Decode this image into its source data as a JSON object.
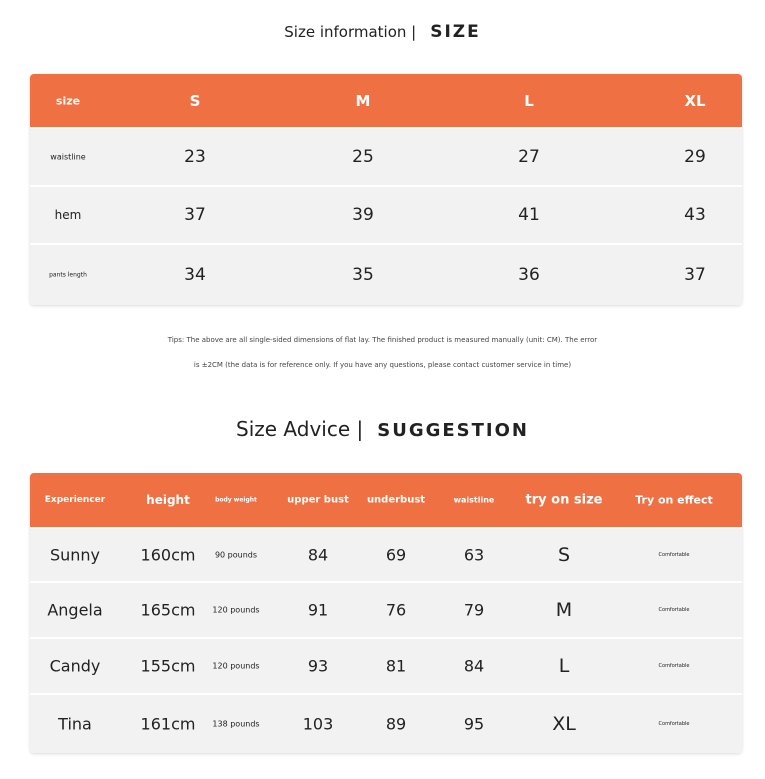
{
  "size_info": {
    "title": "Size information |",
    "title_bold": "SIZE",
    "headers": [
      "size",
      "S",
      "M",
      "L",
      "XL"
    ],
    "rows": [
      [
        "waistline",
        "23",
        "25",
        "27",
        "29"
      ],
      [
        "hem",
        "37",
        "39",
        "41",
        "43"
      ],
      [
        "pants length",
        "34",
        "35",
        "36",
        "37"
      ]
    ]
  },
  "tips": [
    "Tips: The above are all single-sided dimensions of flat lay. The finished product is measured manually (unit: CM). The error",
    "is ±2CM (the data is for reference only. If you have any questions, please contact customer service in time)"
  ],
  "size_advice": {
    "title": "Size Advice |",
    "title_bold": "SUGGESTION",
    "headers": [
      "Experiencer",
      "height",
      "body weight",
      "upper bust",
      "underbust",
      "waistline",
      "try on size",
      "Try on effect"
    ],
    "rows": [
      [
        "Sunny",
        "160cm",
        "90 pounds",
        "84",
        "69",
        "63",
        "S",
        "Comfortable"
      ],
      [
        "Angela",
        "165cm",
        "120 pounds",
        "91",
        "76",
        "79",
        "M",
        "Comfortable"
      ],
      [
        "Candy",
        "155cm",
        "120 pounds",
        "93",
        "81",
        "84",
        "L",
        "Comfortable"
      ],
      [
        "Tina",
        "161cm",
        "138 pounds",
        "103",
        "89",
        "95",
        "XL",
        "Comfortable"
      ]
    ]
  },
  "colors": {
    "accent": "#ef7043",
    "row_bg": "#f2f2f2"
  }
}
